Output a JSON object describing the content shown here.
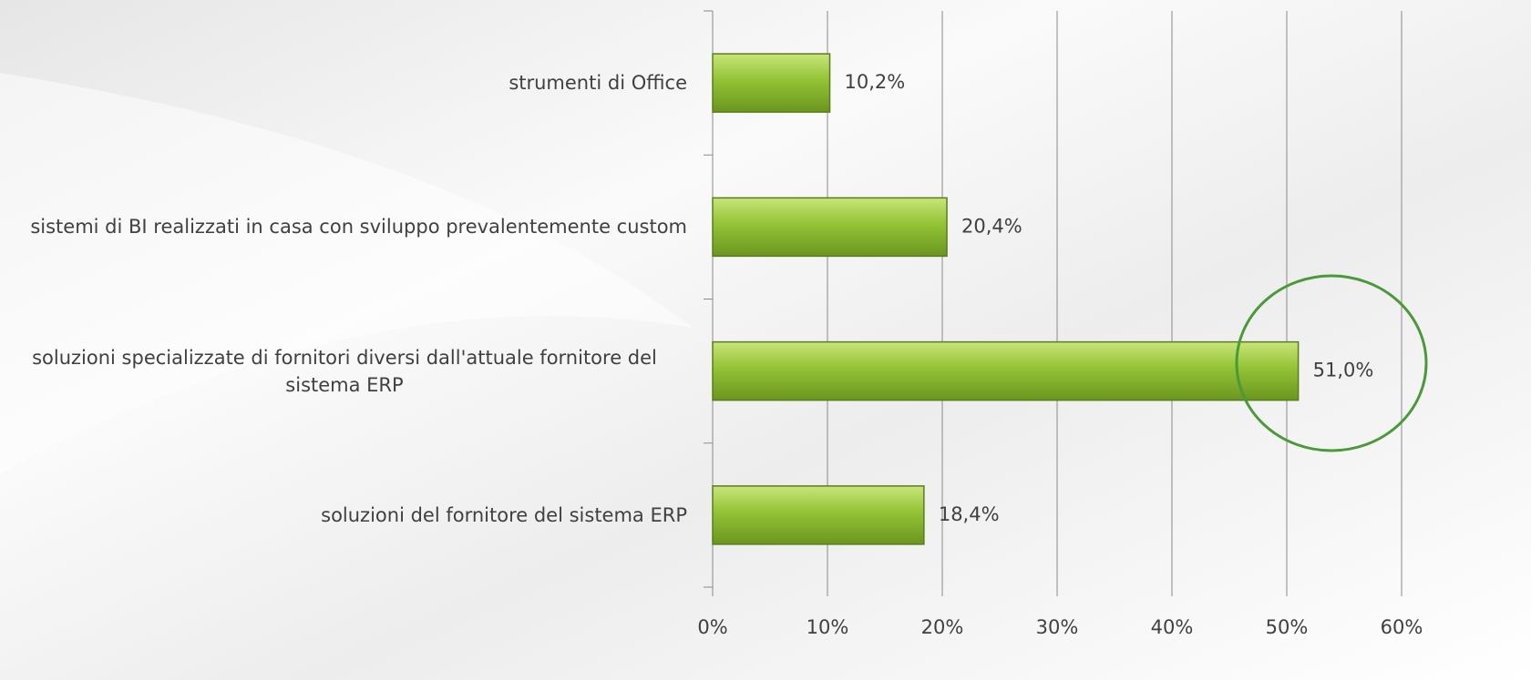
{
  "chart_data": {
    "type": "barh",
    "categories": [
      "strumenti di Office",
      "sistemi di BI realizzati in casa con sviluppo prevalentemente custom",
      "soluzioni specializzate di fornitori diversi dall'attuale fornitore del sistema ERP",
      "soluzioni del fornitore del sistema ERP"
    ],
    "values": [
      10.2,
      20.4,
      51.0,
      18.4
    ],
    "value_labels": [
      "10,2%",
      "20,4%",
      "51,0%",
      "18,4%"
    ],
    "color": "#8cbd2e",
    "xlim": [
      0,
      60
    ],
    "xticks": [
      {
        "value": 0,
        "label": "0%"
      },
      {
        "value": 10,
        "label": "10%"
      },
      {
        "value": 20,
        "label": "20%"
      },
      {
        "value": 30,
        "label": "30%"
      },
      {
        "value": 40,
        "label": "40%"
      },
      {
        "value": 50,
        "label": "50%"
      },
      {
        "value": 60,
        "label": "60%"
      }
    ],
    "grid": true
  }
}
